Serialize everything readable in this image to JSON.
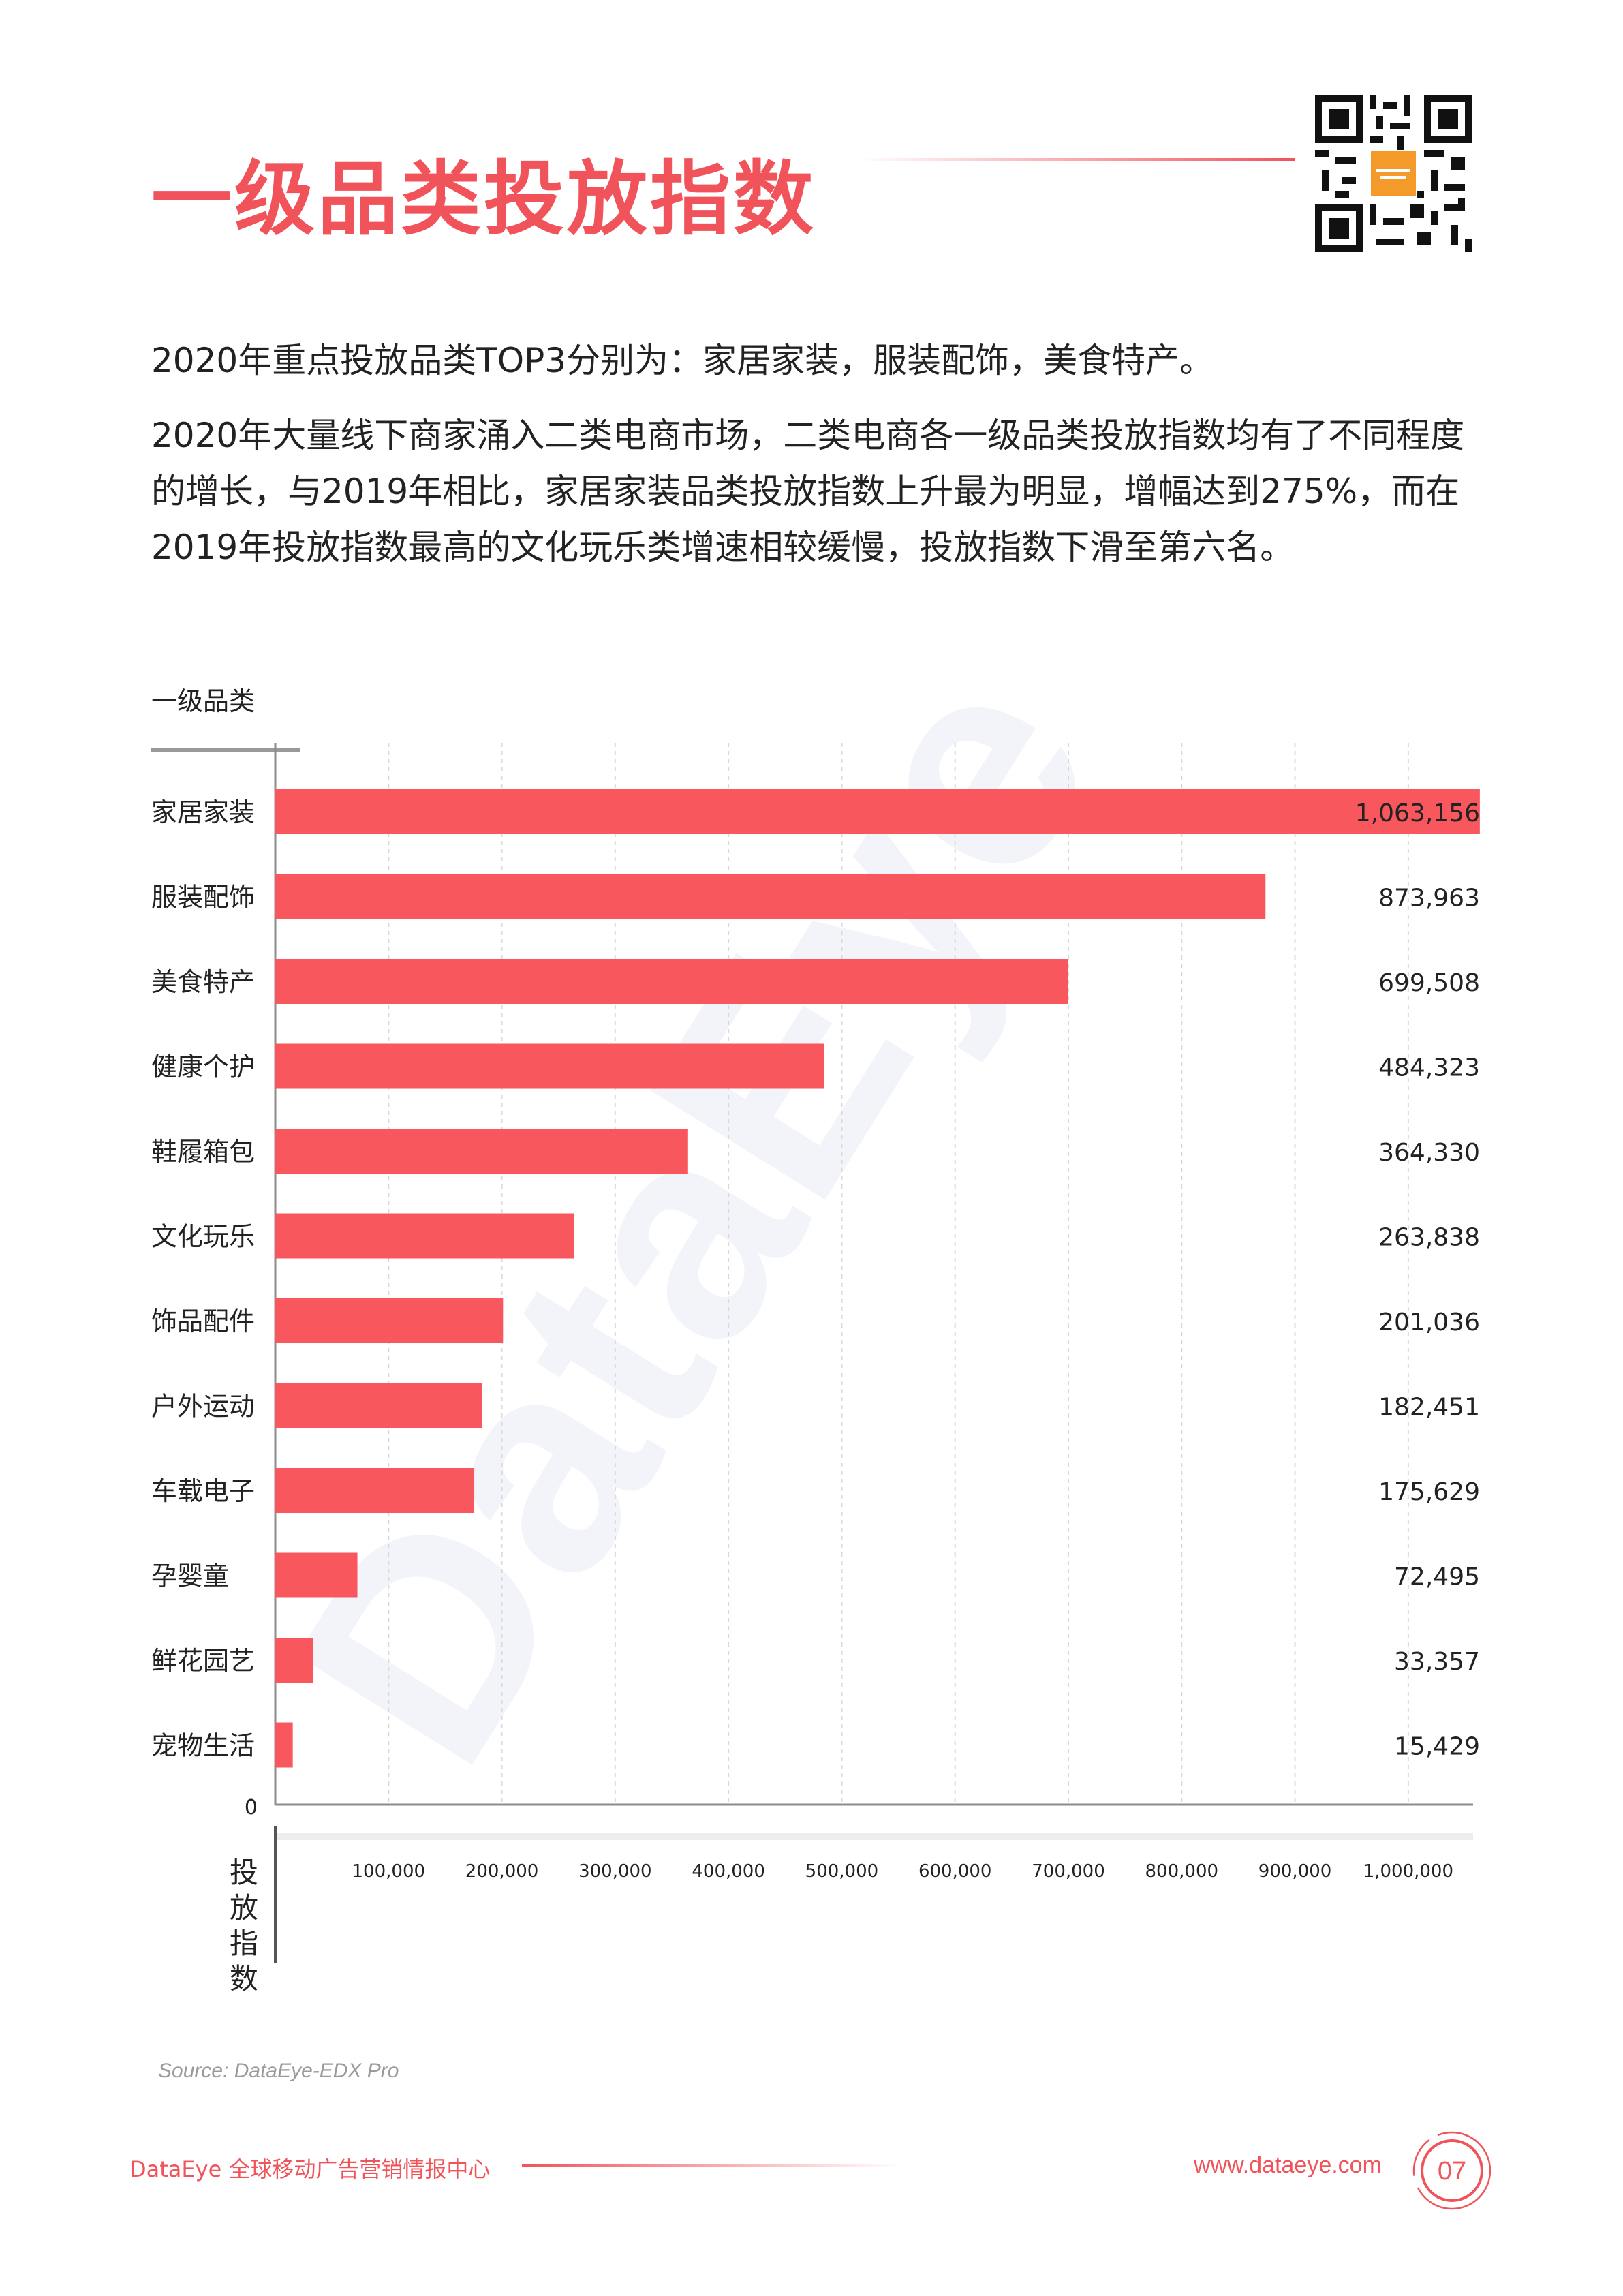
{
  "header": {
    "title": "一级品类投放指数"
  },
  "intro": {
    "line1": "2020年重点投放品类TOP3分别为：家居家装，服装配饰，美食特产。",
    "line2": "2020年大量线下商家涌入二类电商市场，二类电商各一级品类投放指数均有了不同程度的增长，与2019年相比，家居家装品类投放指数上升最为明显，增幅达到275%，而在2019年投放指数最高的文化玩乐类增速相较缓慢，投放指数下滑至第六名。"
  },
  "chart_data": {
    "type": "bar",
    "orientation": "horizontal",
    "ylabel": "一级品类",
    "xlabel": "投放指数",
    "categories": [
      "家居家装",
      "服装配饰",
      "美食特产",
      "健康个护",
      "鞋履箱包",
      "文化玩乐",
      "饰品配件",
      "户外运动",
      "车载电子",
      "孕婴童",
      "鲜花园艺",
      "宠物生活"
    ],
    "values": [
      1063156,
      873963,
      699508,
      484323,
      364330,
      263838,
      201036,
      182451,
      175629,
      72495,
      33357,
      15429
    ],
    "value_labels": [
      "1,063,156",
      "873,963",
      "699,508",
      "484,323",
      "364,330",
      "263,838",
      "201,036",
      "182,451",
      "175,629",
      "72,495",
      "33,357",
      "15,429"
    ],
    "xlim": [
      0,
      1100000
    ],
    "x_ticks": [
      100000,
      200000,
      300000,
      400000,
      500000,
      600000,
      700000,
      800000,
      900000,
      1000000
    ],
    "x_tick_labels": [
      "100,000",
      "200,000",
      "300,000",
      "400,000",
      "500,000",
      "600,000",
      "700,000",
      "800,000",
      "900,000",
      "1,000,000"
    ],
    "zero_label": "0",
    "bar_color": "#f9575e",
    "grid": "vertical dashed"
  },
  "watermark": "DataEye",
  "source": "Source: DataEye-EDX Pro",
  "footer": {
    "left_text": "DataEye 全球移动广告营销情报中心",
    "url": "www.dataeye.com",
    "page": "07"
  },
  "colors": {
    "accent": "#f0545a"
  }
}
